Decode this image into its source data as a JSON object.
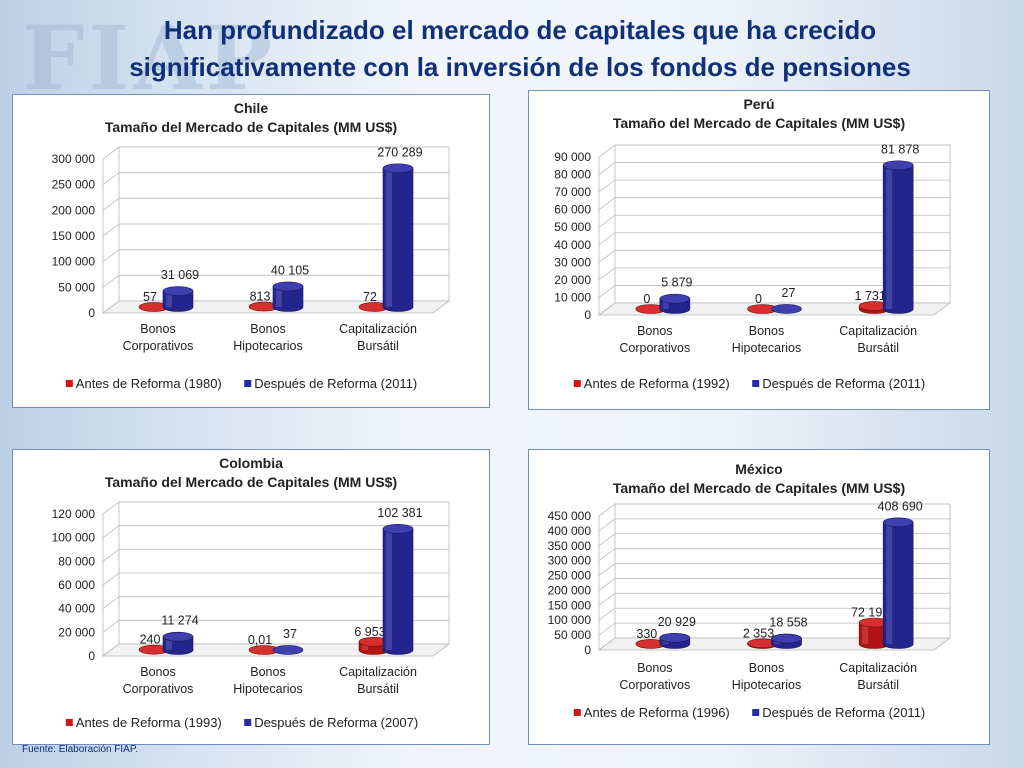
{
  "slide": {
    "title_line1": "Han profundizado el mercado de capitales que ha crecido",
    "title_line2": "significativamente con la inversión de los fondos de pensiones",
    "watermark": "FIAP",
    "source": "Fuente: Elaboración FIAP."
  },
  "colors": {
    "before": "#d01818",
    "after": "#2a2aa6"
  },
  "chart_data": [
    {
      "type": "bar",
      "title": "Chile",
      "subtitle": "Tamaño del Mercado de Capitales (MM US$)",
      "categories": [
        "Bonos Corporativos",
        "Bonos Hipotecarios",
        "Capitalización Bursátil"
      ],
      "category_lines": [
        [
          "Bonos",
          "Corporativos"
        ],
        [
          "Bonos",
          "Hipotecarios"
        ],
        [
          "Capitalización",
          "Bursátil"
        ]
      ],
      "series": [
        {
          "name": "Antes de Reforma (1980)",
          "values": [
            57,
            813,
            72
          ],
          "labels": [
            "57",
            "813",
            "72"
          ]
        },
        {
          "name": "Después de Reforma (2011)",
          "values": [
            31069,
            40105,
            270289
          ],
          "labels": [
            "31 069",
            "40 105",
            "270 289"
          ]
        }
      ],
      "ylim": [
        0,
        300000
      ],
      "yticks": [
        0,
        50000,
        100000,
        150000,
        200000,
        250000,
        300000
      ],
      "ytick_labels": [
        "0",
        "50 000",
        "100 000",
        "150 000",
        "200 000",
        "250 000",
        "300 000"
      ],
      "legend_position": "bottom"
    },
    {
      "type": "bar",
      "title": "Perú",
      "subtitle": "Tamaño del Mercado de Capitales (MM US$)",
      "categories": [
        "Bonos Corporativos",
        "Bonos Hipotecarios",
        "Capitalización Bursátil"
      ],
      "category_lines": [
        [
          "Bonos",
          "Corporativos"
        ],
        [
          "Bonos",
          "Hipotecarios"
        ],
        [
          "Capitalización",
          "Bursátil"
        ]
      ],
      "series": [
        {
          "name": "Antes de Reforma (1992)",
          "values": [
            0,
            0,
            1731
          ],
          "labels": [
            "0",
            "0",
            "1 731"
          ]
        },
        {
          "name": "Después de Reforma (2011)",
          "values": [
            5879,
            27,
            81878
          ],
          "labels": [
            "5 879",
            "27",
            "81 878"
          ]
        }
      ],
      "ylim": [
        0,
        90000
      ],
      "yticks": [
        0,
        10000,
        20000,
        30000,
        40000,
        50000,
        60000,
        70000,
        80000,
        90000
      ],
      "ytick_labels": [
        "0",
        "10 000",
        "20 000",
        "30 000",
        "40 000",
        "50 000",
        "60 000",
        "70 000",
        "80 000",
        "90 000"
      ],
      "legend_position": "bottom"
    },
    {
      "type": "bar",
      "title": "Colombia",
      "subtitle": "Tamaño del Mercado de Capitales (MM US$)",
      "categories": [
        "Bonos Corporativos",
        "Bonos Hipotecarios",
        "Capitalización Bursátil"
      ],
      "category_lines": [
        [
          "Bonos",
          "Corporativos"
        ],
        [
          "Bonos",
          "Hipotecarios"
        ],
        [
          "Capitalización",
          "Bursátil"
        ]
      ],
      "series": [
        {
          "name": "Antes de Reforma (1993)",
          "values": [
            240,
            0.01,
            6953
          ],
          "labels": [
            "240",
            "0,01",
            "6 953"
          ]
        },
        {
          "name": "Después de Reforma (2007)",
          "values": [
            11274,
            37,
            102381
          ],
          "labels": [
            "11 274",
            "37",
            "102 381"
          ]
        }
      ],
      "ylim": [
        0,
        120000
      ],
      "yticks": [
        0,
        20000,
        40000,
        60000,
        80000,
        100000,
        120000
      ],
      "ytick_labels": [
        "0",
        "20 000",
        "40 000",
        "60 000",
        "80 000",
        "100 000",
        "120 000"
      ],
      "legend_position": "bottom"
    },
    {
      "type": "bar",
      "title": "México",
      "subtitle": "Tamaño del Mercado de Capitales (MM US$)",
      "categories": [
        "Bonos Corporativos",
        "Bonos Hipotecarios",
        "Capitalización Bursátil"
      ],
      "category_lines": [
        [
          "Bonos",
          "Corporativos"
        ],
        [
          "Bonos",
          "Hipotecarios"
        ],
        [
          "Capitalización",
          "Bursátil"
        ]
      ],
      "series": [
        {
          "name": "Antes de Reforma (1996)",
          "values": [
            330,
            2353,
            72197
          ],
          "labels": [
            "330",
            "2 353",
            "72 197"
          ]
        },
        {
          "name": "Después de Reforma (2011)",
          "values": [
            20929,
            18558,
            408690
          ],
          "labels": [
            "20 929",
            "18 558",
            "408 690"
          ]
        }
      ],
      "ylim": [
        0,
        450000
      ],
      "yticks": [
        0,
        50000,
        100000,
        150000,
        200000,
        250000,
        300000,
        350000,
        400000,
        450000
      ],
      "ytick_labels": [
        "0",
        "50 000",
        "100 000",
        "150 000",
        "200 000",
        "250 000",
        "300 000",
        "350 000",
        "400 000",
        "450 000"
      ],
      "legend_position": "bottom"
    }
  ]
}
